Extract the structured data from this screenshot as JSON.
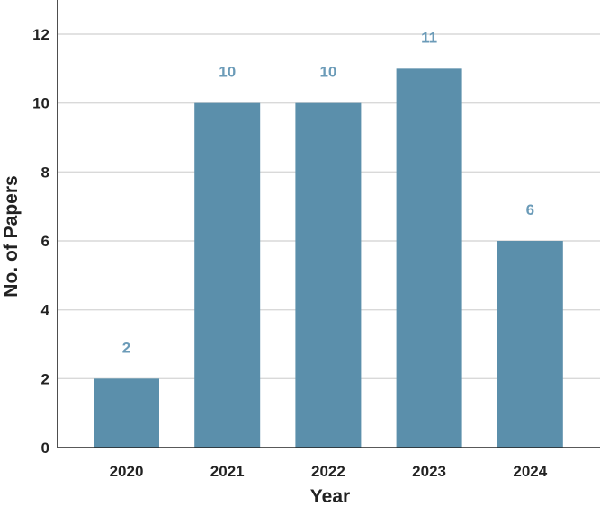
{
  "chart_data": {
    "type": "bar",
    "categories": [
      "2020",
      "2021",
      "2022",
      "2023",
      "2024"
    ],
    "values": [
      2,
      10,
      10,
      11,
      6
    ],
    "data_labels": [
      "2",
      "10",
      "10",
      "11",
      "6"
    ],
    "xlabel": "Year",
    "ylabel": "No. of Papers",
    "ylim": [
      0,
      13
    ],
    "yticks": [
      0,
      2,
      4,
      6,
      8,
      10,
      12
    ],
    "grid": true,
    "legend": "none",
    "colors": {
      "bar": "#5b8fab",
      "data_label": "#6b9bb8",
      "grid": "#d9d9d9",
      "axis": "#222222"
    }
  }
}
